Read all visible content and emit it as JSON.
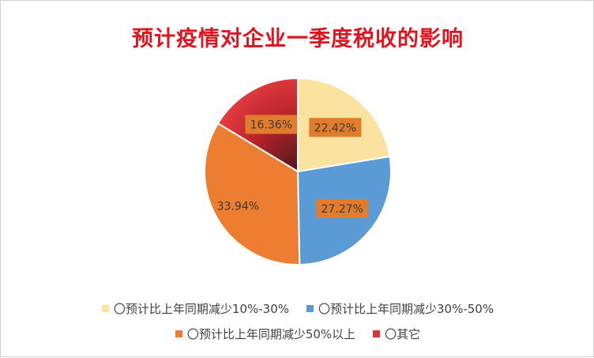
{
  "chart_data": {
    "type": "pie",
    "title": "预计疫情对企业一季度税收的影响",
    "slices": [
      {
        "label": "〇预计比上年同期减少10%-30%",
        "value": 22.42,
        "display": "22.42%",
        "color": "#fbe29e"
      },
      {
        "label": "〇预计比上年同期减少30%-50%",
        "value": 27.27,
        "display": "27.27%",
        "color": "#5b9bd5"
      },
      {
        "label": "〇预计比上年同期减少50%以上",
        "value": 33.94,
        "display": "33.94%",
        "color": "#ed7d31"
      },
      {
        "label": "〇其它",
        "value": 16.36,
        "display": "16.36%",
        "color": "#d9353a"
      }
    ],
    "legend_position": "bottom",
    "data_label_background": "#e07c2c"
  }
}
